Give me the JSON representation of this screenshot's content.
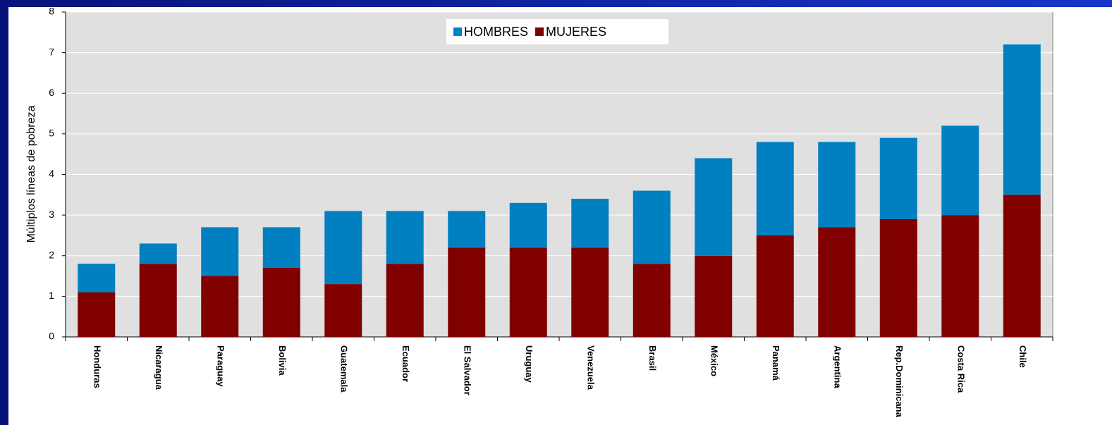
{
  "chart_data": {
    "type": "stacked_bar",
    "y_label": "Múltiplos líneas de pobreza",
    "categories": [
      "Honduras",
      "Nicaragua",
      "Paraguay",
      "Bolivia",
      "Guatemala",
      "Ecuador",
      "El Salvador",
      "Uruguay",
      "Venezuela",
      "Brasil",
      "México",
      "Panamá",
      "Argentina",
      "Rep.Dominicana",
      "Costa Rica",
      "Chile"
    ],
    "series": [
      {
        "name": "HOMBRES",
        "color": "#0080c0",
        "values": [
          0.7,
          0.5,
          1.2,
          1.0,
          1.8,
          1.3,
          0.9,
          1.1,
          1.2,
          1.8,
          2.4,
          2.3,
          2.1,
          2.0,
          2.2,
          3.7
        ]
      },
      {
        "name": "MUJERES",
        "color": "#800000",
        "values": [
          1.1,
          1.8,
          1.5,
          1.7,
          1.3,
          1.8,
          2.2,
          2.2,
          2.2,
          1.8,
          2.0,
          2.5,
          2.7,
          2.9,
          3.0,
          3.5
        ]
      }
    ],
    "ylim": [
      0,
      8
    ],
    "yticks": [
      0,
      1,
      2,
      3,
      4,
      5,
      6,
      7,
      8
    ],
    "grid": true,
    "legend": "top"
  }
}
